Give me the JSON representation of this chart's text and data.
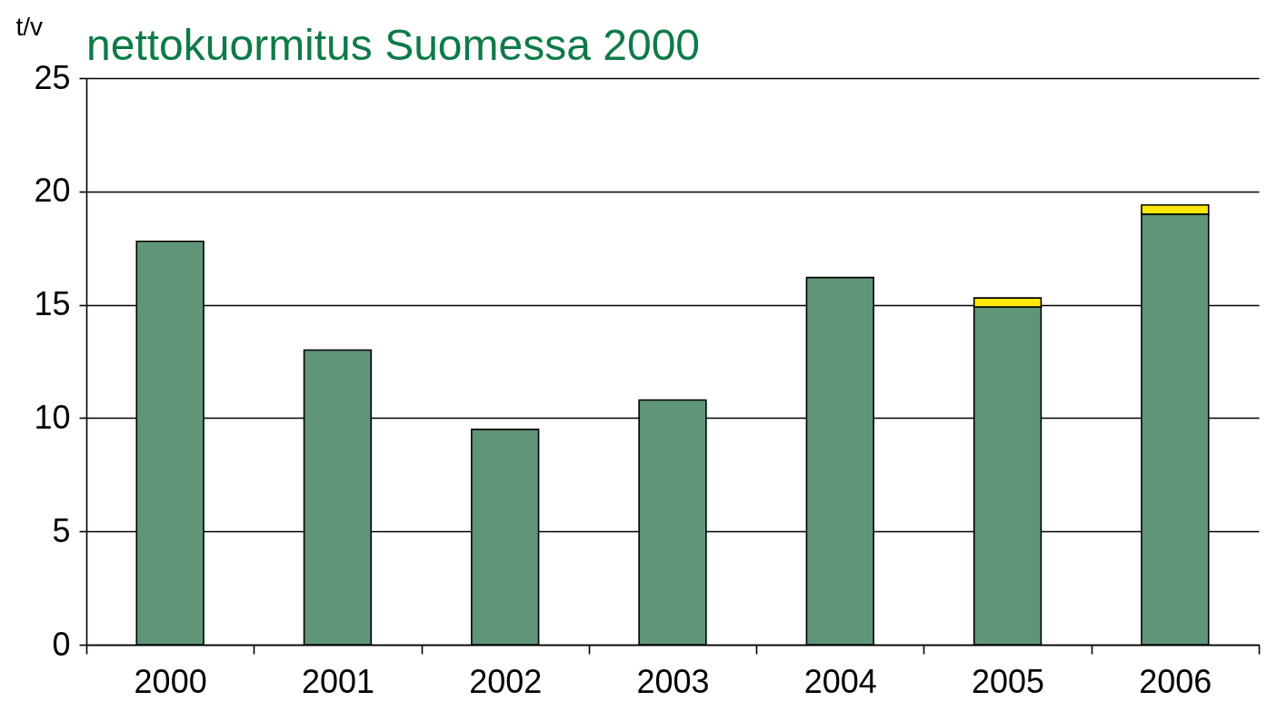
{
  "chart_data": {
    "type": "bar",
    "title": "nettokuormitus Suomessa 2000",
    "ylabel": "t/v",
    "categories": [
      "2000",
      "2001",
      "2002",
      "2003",
      "2004",
      "2005",
      "2006"
    ],
    "series": [
      {
        "color": "#609677",
        "values": [
          17.8,
          13.0,
          9.5,
          10.8,
          16.2,
          14.9,
          19.0
        ]
      },
      {
        "color": "#ffe800",
        "values": [
          null,
          null,
          null,
          null,
          null,
          0.4,
          0.4
        ]
      }
    ],
    "stacked": true,
    "ylim": [
      0,
      25
    ],
    "yticks": [
      0,
      5,
      10,
      15,
      20,
      25
    ],
    "grid": "y",
    "legend": false
  }
}
